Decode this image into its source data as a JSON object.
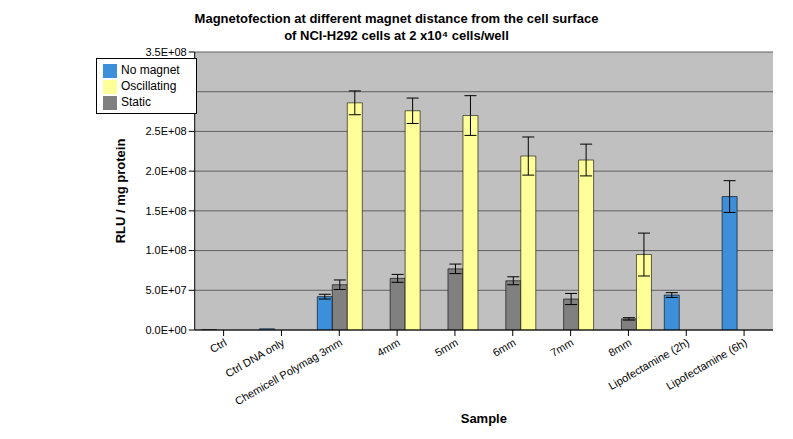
{
  "chart_data": {
    "type": "bar",
    "title": "Magnetofection at different magnet distance from the cell surface",
    "subtitle": "of NCI-H292 cells at 2 x10⁴ cells/well",
    "x_label": "Sample",
    "y_label": "RLU / mg protein",
    "categories": [
      "Ctrl",
      "Ctrl DNA only",
      "Chemicell Polymag 3mm",
      "4mm",
      "5mm",
      "6mm",
      "7mm",
      "8mm",
      "Lipofectamine (2h)",
      "Lipofectamine (6h)"
    ],
    "series": [
      {
        "name": "No magnet",
        "color": "#3c8fd8",
        "values": [
          300000,
          1500000,
          42000000,
          null,
          null,
          null,
          null,
          null,
          44000000,
          168000000
        ],
        "errors": [
          null,
          null,
          3000000,
          null,
          null,
          null,
          null,
          null,
          3000000,
          20000000
        ]
      },
      {
        "name": "Static",
        "color": "#808080",
        "values": [
          null,
          null,
          57000000,
          65000000,
          77000000,
          62000000,
          39000000,
          14000000,
          null,
          null
        ],
        "errors": [
          null,
          null,
          6000000,
          5000000,
          6000000,
          5000000,
          7000000,
          1500000,
          null,
          null
        ]
      },
      {
        "name": "Oscillating",
        "color": "#ffff99",
        "values": [
          null,
          null,
          286000000,
          276000000,
          270000000,
          219000000,
          214000000,
          95000000,
          null,
          null
        ],
        "errors": [
          null,
          null,
          15000000,
          16000000,
          25000000,
          24000000,
          20000000,
          27000000,
          null,
          null
        ]
      }
    ],
    "ylim": [
      0,
      350000000
    ],
    "yticks": [
      {
        "value": 0,
        "label": "0.0E+00"
      },
      {
        "value": 50000000,
        "label": "5.0E+07"
      },
      {
        "value": 100000000,
        "label": "1.0E+08"
      },
      {
        "value": 150000000,
        "label": "1.5E+08"
      },
      {
        "value": 200000000,
        "label": "2.0E+08"
      },
      {
        "value": 250000000,
        "label": "2.5E+08"
      },
      {
        "value": 300000000,
        "label": "3.0E+08"
      },
      {
        "value": 350000000,
        "label": "3.5E+08"
      }
    ],
    "grid": true,
    "legend": "top-left"
  }
}
